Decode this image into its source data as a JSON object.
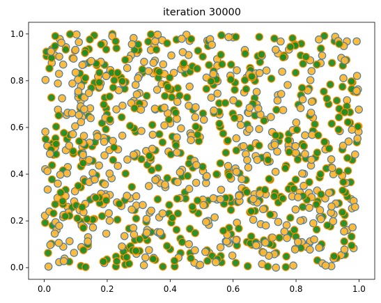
{
  "chart_data": {
    "type": "scatter",
    "title": "iteration 30000",
    "xlabel": "",
    "ylabel": "",
    "xlim": [
      -0.05,
      1.05
    ],
    "ylim": [
      -0.05,
      1.05
    ],
    "xticks": [
      "0.0",
      "0.2",
      "0.4",
      "0.6",
      "0.8",
      "1.0"
    ],
    "yticks": [
      "0.0",
      "0.2",
      "0.4",
      "0.6",
      "0.8",
      "1.0"
    ],
    "grid": false,
    "legend": "none",
    "point_count": 1000,
    "colors": {
      "type_a_fill": "#228B22",
      "type_a_edge": "#FF8C00",
      "type_b_fill": "#FFB733",
      "type_b_edge": "#4A7FA3"
    },
    "series": [
      {
        "label_hint": "green-filled points (orange edge)"
      },
      {
        "label_hint": "orange-filled points (blue edge)"
      }
    ]
  }
}
